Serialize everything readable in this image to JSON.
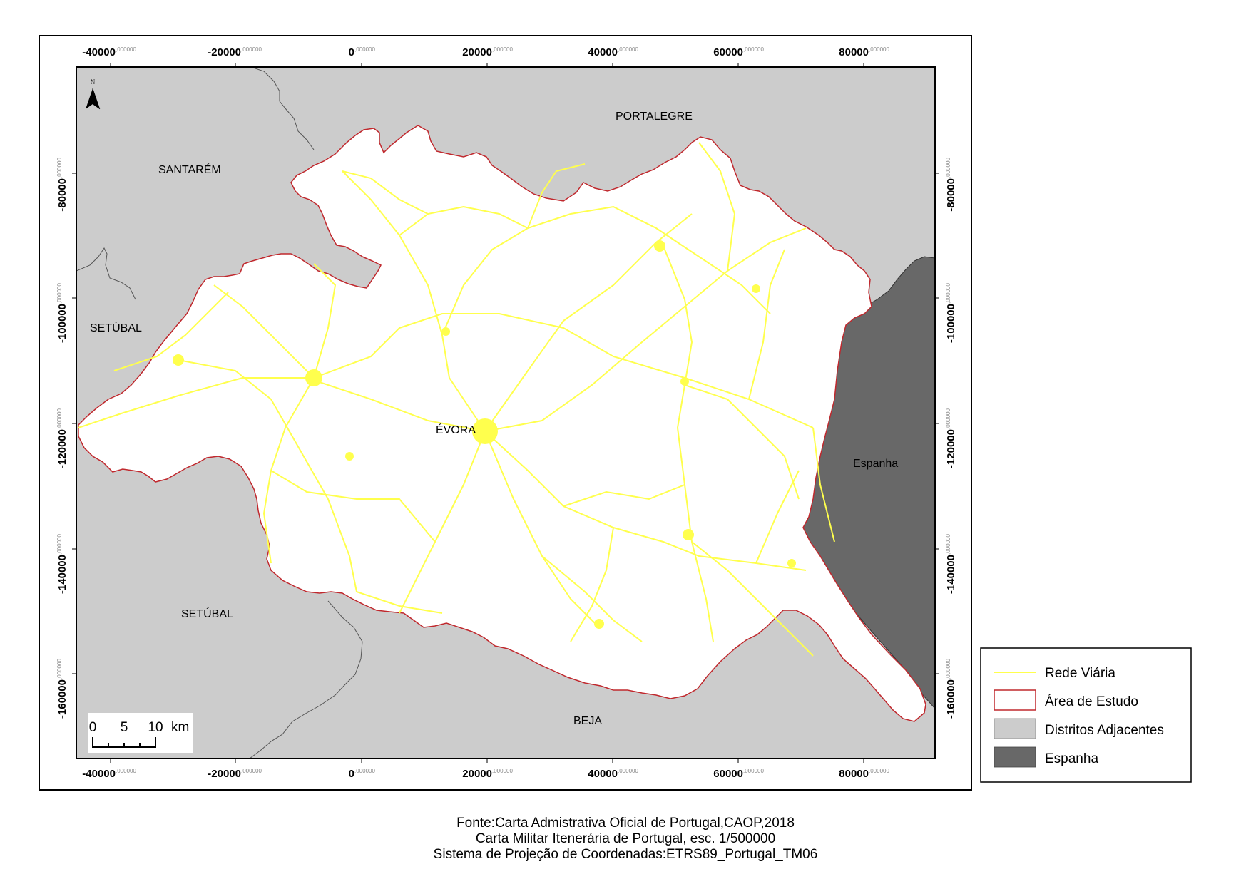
{
  "map": {
    "x_ticks": [
      "-40000",
      "-20000",
      "0",
      "20000",
      "40000",
      "60000",
      "80000"
    ],
    "y_ticks": [
      "-80000",
      "-100000",
      "-120000",
      "-140000",
      "-160000"
    ],
    "tick_suffix": ",000000",
    "north_arrow": "N",
    "region_labels": {
      "santarem": "SANTARÉM",
      "portalegre": "PORTALEGRE",
      "setubal_west": "SETÚBAL",
      "setubal_south": "SETÚBAL",
      "beja": "BEJA",
      "evora": "ÉVORA",
      "espanha": "Espanha"
    },
    "scale_bar": {
      "labels": [
        "0",
        "5",
        "10"
      ],
      "unit": "km"
    },
    "colors": {
      "adjacent_districts": "#cccccc",
      "spain": "#686868",
      "study_area_outline": "#c0282d",
      "roads": "#ffff4d",
      "study_area_fill": "#ffffff"
    }
  },
  "legend": {
    "items": [
      {
        "label": "Rede Viária",
        "symbol": "line",
        "color": "#ffff4d"
      },
      {
        "label": "Área de Estudo",
        "symbol": "outline",
        "color": "#c0282d"
      },
      {
        "label": "Distritos Adjacentes",
        "symbol": "fill",
        "color": "#cccccc"
      },
      {
        "label": "Espanha",
        "symbol": "fill",
        "color": "#686868"
      }
    ]
  },
  "footer": {
    "line1": "Fonte:Carta Admistrativa Oficial de Portugal,CAOP,2018",
    "line2": "Carta Militar Itenerária de Portugal, esc. 1/500000",
    "line3": "Sistema de Projeção de Coordenadas:ETRS89_Portugal_TM06"
  }
}
